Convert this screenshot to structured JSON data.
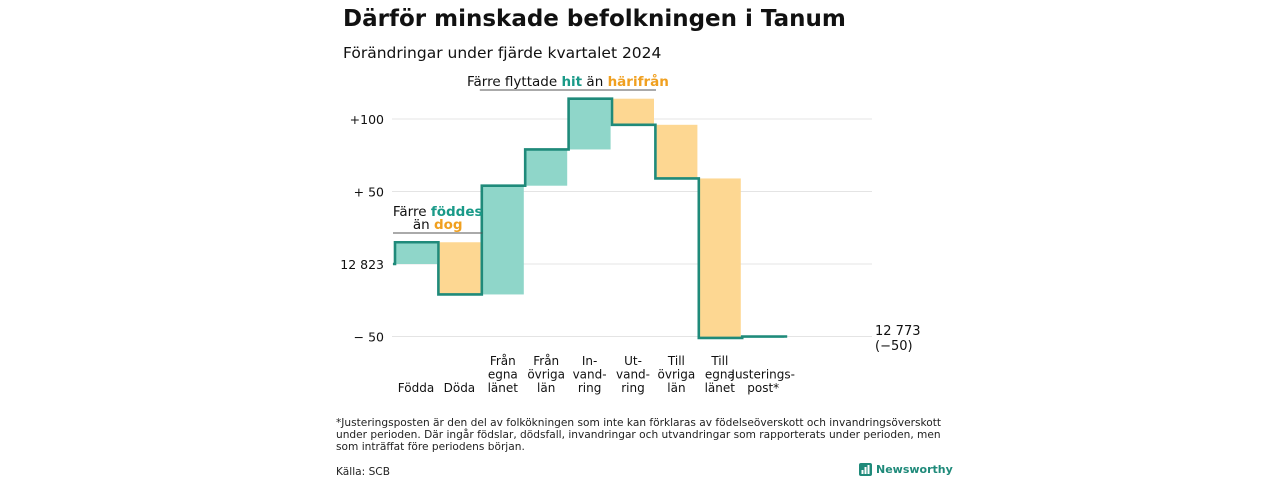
{
  "title": "Därför minskade befolkningen i Tanum",
  "subtitle": "Förändringar under fjärde kvartalet 2024",
  "footnote": "*Justeringsposten är den del av folkökningen som inte kan förklaras av födelseöverskott och invandringsöverskott under perioden. Där ingår födslar, dödsfall, invandringar och utvandringar som rapporterats under perioden, men som inträffat före periodens början.",
  "source": "Källa: SCB",
  "brand": "Newsworthy",
  "colors": {
    "positive": "#8fd6c9",
    "negative": "#fdd792",
    "step_line": "#1f8a7a",
    "teal_text": "#1a9a88",
    "orange_text": "#f0a020",
    "grid": "#e4e4e4"
  },
  "chart_data": {
    "type": "waterfall",
    "baseline": 12823,
    "final_value": 12773,
    "final_change": -50,
    "final_label": [
      "12 773",
      "(−50)"
    ],
    "ylim": [
      -58,
      130
    ],
    "y_ticks": [
      {
        "value": 100,
        "label": "+100"
      },
      {
        "value": 50,
        "label": "+ 50"
      },
      {
        "value": 0,
        "label": "12 823"
      },
      {
        "value": -50,
        "label": "−  50"
      }
    ],
    "categories": [
      {
        "label": [
          "Födda"
        ],
        "value": 15,
        "sign": "positive"
      },
      {
        "label": [
          "Döda"
        ],
        "value": -36,
        "sign": "negative"
      },
      {
        "label": [
          "Från",
          "egna",
          "länet"
        ],
        "value": 75,
        "sign": "positive"
      },
      {
        "label": [
          "Från",
          "övriga",
          "län"
        ],
        "value": 25,
        "sign": "positive"
      },
      {
        "label": [
          "In-",
          "vand-",
          "ring"
        ],
        "value": 35,
        "sign": "positive"
      },
      {
        "label": [
          "Ut-",
          "vand-",
          "ring"
        ],
        "value": -18,
        "sign": "negative"
      },
      {
        "label": [
          "Till",
          "övriga",
          "län"
        ],
        "value": -37,
        "sign": "negative"
      },
      {
        "label": [
          "Till",
          "egna",
          "länet"
        ],
        "value": -110,
        "sign": "negative"
      },
      {
        "label": [
          "Justerings-",
          "post*"
        ],
        "value": 1,
        "sign": "positive"
      }
    ],
    "annotations": [
      {
        "lines": [
          [
            {
              "text": "Färre ",
              "style": "plain"
            },
            {
              "text": "föddes",
              "style": "teal"
            }
          ],
          [
            {
              "text": "än ",
              "style": "plain"
            },
            {
              "text": "dog",
              "style": "orange"
            }
          ]
        ],
        "span": [
          0,
          1
        ]
      },
      {
        "lines": [
          [
            {
              "text": "Färre flyttade ",
              "style": "plain"
            },
            {
              "text": "hit",
              "style": "teal"
            },
            {
              "text": " än ",
              "style": "plain"
            },
            {
              "text": "härifrån",
              "style": "orange"
            }
          ]
        ],
        "span": [
          2,
          5
        ]
      }
    ]
  }
}
